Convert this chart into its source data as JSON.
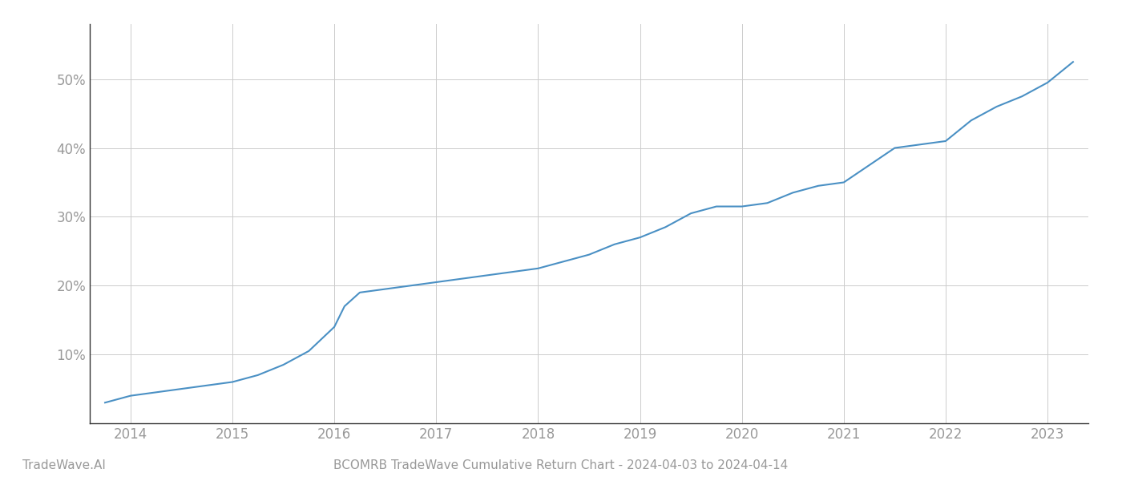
{
  "title": "BCOMRB TradeWave Cumulative Return Chart - 2024-04-03 to 2024-04-14",
  "watermark": "TradeWave.AI",
  "line_color": "#4a90c4",
  "background_color": "#ffffff",
  "grid_color": "#cccccc",
  "x_years": [
    2014,
    2015,
    2016,
    2017,
    2018,
    2019,
    2020,
    2021,
    2022,
    2023
  ],
  "x_data": [
    2013.75,
    2014.0,
    2014.25,
    2014.5,
    2014.75,
    2015.0,
    2015.25,
    2015.5,
    2015.75,
    2016.0,
    2016.1,
    2016.25,
    2016.5,
    2016.75,
    2017.0,
    2017.25,
    2017.5,
    2017.75,
    2018.0,
    2018.25,
    2018.5,
    2018.75,
    2019.0,
    2019.25,
    2019.5,
    2019.75,
    2020.0,
    2020.25,
    2020.5,
    2020.75,
    2021.0,
    2021.25,
    2021.5,
    2021.75,
    2022.0,
    2022.25,
    2022.5,
    2022.75,
    2023.0,
    2023.25
  ],
  "y_data": [
    3.0,
    4.0,
    4.5,
    5.0,
    5.5,
    6.0,
    7.0,
    8.5,
    10.5,
    14.0,
    17.0,
    19.0,
    19.5,
    20.0,
    20.5,
    21.0,
    21.5,
    22.0,
    22.5,
    23.5,
    24.5,
    26.0,
    27.0,
    28.5,
    30.5,
    31.5,
    31.5,
    32.0,
    33.5,
    34.5,
    35.0,
    37.5,
    40.0,
    40.5,
    41.0,
    44.0,
    46.0,
    47.5,
    49.5,
    52.5
  ],
  "ylim": [
    0,
    58
  ],
  "yticks": [
    10,
    20,
    30,
    40,
    50
  ],
  "xlim": [
    2013.6,
    2023.4
  ],
  "title_fontsize": 11,
  "watermark_fontsize": 11,
  "tick_label_color": "#999999",
  "spine_color": "#333333"
}
